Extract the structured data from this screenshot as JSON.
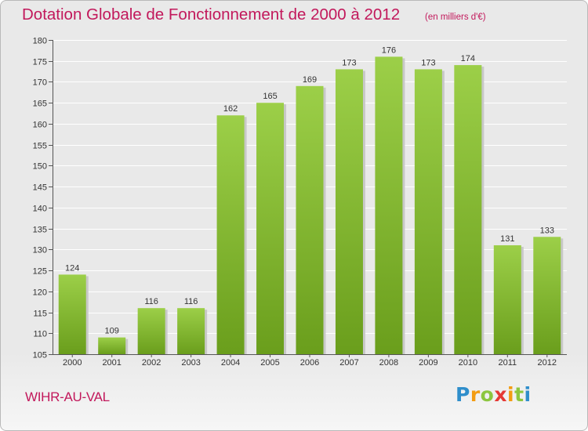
{
  "title": "Dotation Globale de Fonctionnement de 2000 à 2012",
  "subtitle": "(en milliers d'€)",
  "commune": "WIHR-AU-VAL",
  "logo": {
    "letters": [
      "P",
      "r",
      "o",
      "x",
      "i",
      "t",
      "i"
    ],
    "colors": [
      "#2f8ecb",
      "#f39c12",
      "#8cc63f",
      "#e53935",
      "#f39c12",
      "#8cc63f",
      "#2f8ecb"
    ]
  },
  "colors": {
    "bar_light": "#9ccf48",
    "bar_dark": "#6a9e1c",
    "title": "#c2185b"
  },
  "chart_data": {
    "type": "bar",
    "categories": [
      "2000",
      "2001",
      "2002",
      "2003",
      "2004",
      "2005",
      "2006",
      "2007",
      "2008",
      "2009",
      "2010",
      "2011",
      "2012"
    ],
    "values": [
      124,
      109,
      116,
      116,
      162,
      165,
      169,
      173,
      176,
      173,
      174,
      131,
      133
    ],
    "ylim": [
      105,
      180
    ],
    "yticks": [
      105,
      110,
      115,
      120,
      125,
      130,
      135,
      140,
      145,
      150,
      155,
      160,
      165,
      170,
      175,
      180
    ],
    "grid": true,
    "legend": "none"
  }
}
